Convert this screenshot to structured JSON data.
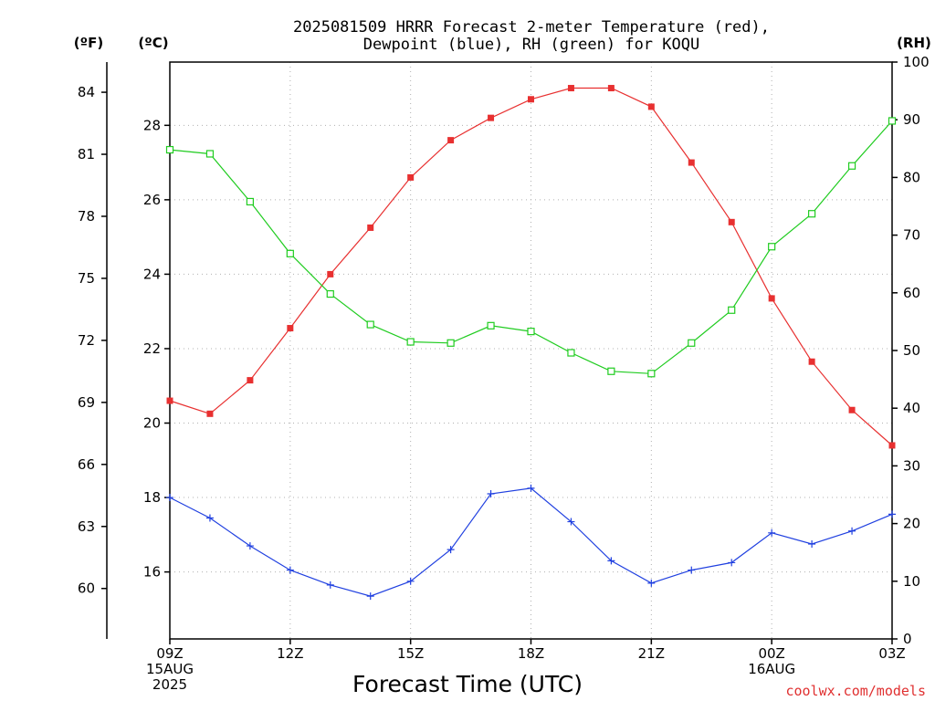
{
  "title_line1": "2025081509 HRRR Forecast 2-meter Temperature (red),",
  "title_line2": "Dewpoint (blue), RH (green) for KOQU",
  "credit": "coolwx.com/models",
  "colors": {
    "temperature": "#e83030",
    "dewpoint": "#2040e0",
    "rh": "#20cc20",
    "grid": "#b0b0b0"
  },
  "chart_data": {
    "type": "line",
    "x": [
      "09Z",
      "10Z",
      "11Z",
      "12Z",
      "13Z",
      "14Z",
      "15Z",
      "16Z",
      "17Z",
      "18Z",
      "19Z",
      "20Z",
      "21Z",
      "22Z",
      "23Z",
      "00Z",
      "01Z",
      "02Z",
      "03Z"
    ],
    "xtick_labels": [
      {
        "index": 0,
        "lines": [
          "09Z",
          "15AUG",
          "2025"
        ]
      },
      {
        "index": 3,
        "lines": [
          "12Z"
        ]
      },
      {
        "index": 6,
        "lines": [
          "15Z"
        ]
      },
      {
        "index": 9,
        "lines": [
          "18Z"
        ]
      },
      {
        "index": 12,
        "lines": [
          "21Z"
        ]
      },
      {
        "index": 15,
        "lines": [
          "00Z",
          "16AUG"
        ]
      },
      {
        "index": 18,
        "lines": [
          "03Z"
        ]
      }
    ],
    "xlabel": "Forecast Time (UTC)",
    "axes": {
      "fahrenheit": {
        "label": "(ºF)",
        "ticks": [
          60,
          63,
          66,
          69,
          72,
          75,
          78,
          81,
          84
        ]
      },
      "celsius": {
        "label": "(ºC)",
        "ticks": [
          16,
          18,
          20,
          22,
          24,
          26,
          28
        ],
        "range": [
          14.2,
          29.7
        ]
      },
      "rh": {
        "label": "(RH)",
        "ticks": [
          0,
          10,
          20,
          30,
          40,
          50,
          60,
          70,
          80,
          90,
          100
        ],
        "range": [
          0,
          100
        ]
      }
    },
    "series": [
      {
        "key": "temperature",
        "axis": "celsius",
        "marker": "filled-square",
        "values": [
          20.6,
          20.25,
          21.15,
          22.55,
          24.0,
          25.25,
          26.6,
          27.6,
          28.2,
          28.7,
          29.0,
          29.0,
          28.5,
          27.0,
          25.4,
          23.35,
          21.65,
          20.35,
          19.4
        ]
      },
      {
        "key": "dewpoint",
        "axis": "celsius",
        "marker": "plus",
        "values": [
          18.0,
          17.45,
          16.7,
          16.05,
          15.65,
          15.35,
          15.75,
          16.6,
          18.1,
          18.25,
          17.35,
          16.3,
          15.7,
          16.05,
          16.25,
          17.05,
          16.75,
          17.1,
          17.55
        ]
      },
      {
        "key": "rh",
        "axis": "rh",
        "marker": "open-square",
        "values": [
          84.8,
          84.1,
          75.8,
          66.8,
          59.8,
          54.5,
          51.5,
          51.3,
          54.3,
          53.3,
          49.6,
          46.4,
          46.0,
          51.3,
          57.0,
          68.0,
          73.7,
          82.0,
          89.8
        ]
      }
    ]
  }
}
